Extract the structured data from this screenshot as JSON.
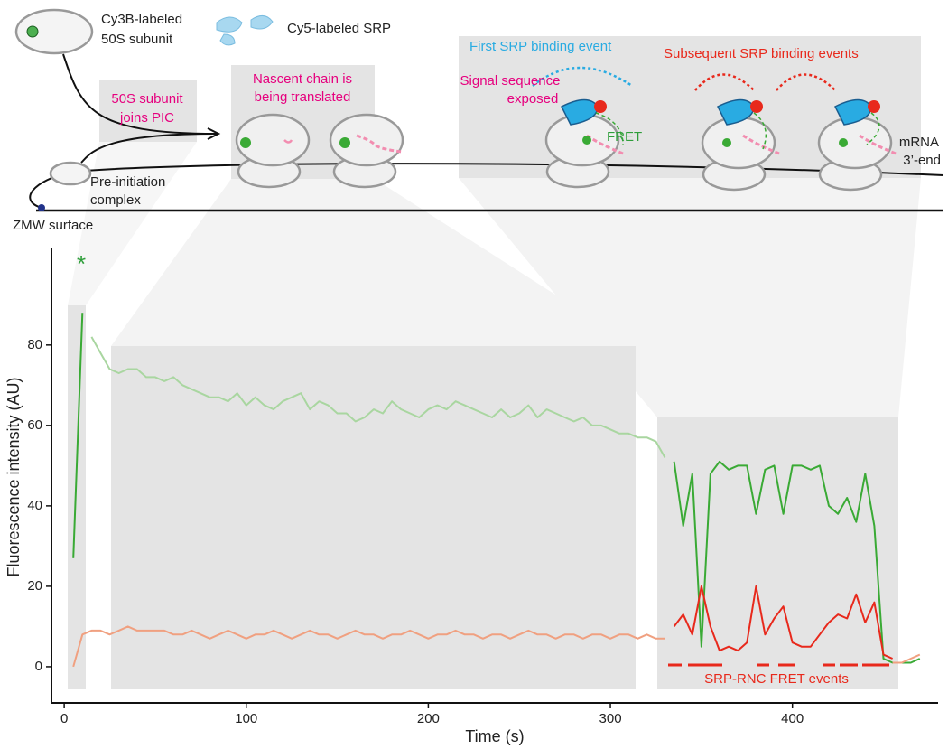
{
  "diagram": {
    "cy3b": [
      "Cy3B-labeled",
      "50S subunit"
    ],
    "cy5": "Cy5-labeled SRP",
    "joins": [
      "50S subunit",
      "joins PIC"
    ],
    "nascent": [
      "Nascent chain is",
      "being translated"
    ],
    "first": "First SRP binding event",
    "subsequent": "Subsequent SRP binding events",
    "signal": [
      "Signal sequence",
      "exposed"
    ],
    "fret": "FRET",
    "mrna": [
      "mRNA",
      "3’-end"
    ],
    "pic": [
      "Pre-initiation",
      "complex"
    ],
    "zmw": "ZMW surface"
  },
  "chart_data": {
    "type": "line",
    "xlabel": "Time (s)",
    "ylabel": "Fluorescence intensity (AU)",
    "annotations": [
      "*",
      "SRP-RNC FRET events"
    ],
    "xlim": [
      -7,
      480
    ],
    "ylim": [
      -9,
      104
    ],
    "xticks": [
      0,
      100,
      200,
      300,
      400
    ],
    "yticks": [
      0,
      20,
      40,
      60,
      80
    ],
    "x": [
      5,
      10,
      15,
      20,
      25,
      30,
      35,
      40,
      45,
      50,
      55,
      60,
      65,
      70,
      75,
      80,
      85,
      90,
      95,
      100,
      105,
      110,
      115,
      120,
      125,
      130,
      135,
      140,
      145,
      150,
      155,
      160,
      165,
      170,
      175,
      180,
      185,
      190,
      195,
      200,
      205,
      210,
      215,
      220,
      225,
      230,
      235,
      240,
      245,
      250,
      255,
      260,
      265,
      270,
      275,
      280,
      285,
      290,
      295,
      300,
      305,
      310,
      315,
      320,
      325,
      330,
      335,
      340,
      345,
      350,
      355,
      360,
      365,
      370,
      375,
      380,
      385,
      390,
      395,
      400,
      405,
      410,
      415,
      420,
      425,
      430,
      435,
      440,
      445,
      450,
      455,
      460,
      465,
      470
    ],
    "series": [
      {
        "color": "#a9d6a0",
        "values": [
          null,
          null,
          82,
          78,
          74,
          73,
          74,
          74,
          72,
          72,
          71,
          72,
          70,
          69,
          68,
          67,
          67,
          66,
          68,
          65,
          67,
          65,
          64,
          66,
          67,
          68,
          64,
          66,
          65,
          63,
          63,
          61,
          62,
          64,
          63,
          66,
          64,
          63,
          62,
          64,
          65,
          64,
          66,
          65,
          64,
          63,
          62,
          64,
          62,
          63,
          65,
          62,
          64,
          63,
          62,
          61,
          62,
          60,
          60,
          59,
          58,
          58,
          57,
          57,
          56,
          52,
          null,
          null,
          null,
          null,
          null,
          null,
          null,
          null,
          null,
          null,
          null,
          null,
          null,
          null,
          null,
          null,
          null,
          null,
          null,
          null,
          null,
          null,
          null,
          null,
          null,
          null,
          null,
          null
        ]
      },
      {
        "color": "#3aaa35",
        "values": [
          27,
          88,
          null,
          null,
          null,
          null,
          null,
          null,
          null,
          null,
          null,
          null,
          null,
          null,
          null,
          null,
          null,
          null,
          null,
          null,
          null,
          null,
          null,
          null,
          null,
          null,
          null,
          null,
          null,
          null,
          null,
          null,
          null,
          null,
          null,
          null,
          null,
          null,
          null,
          null,
          null,
          null,
          null,
          null,
          null,
          null,
          null,
          null,
          null,
          null,
          null,
          null,
          null,
          null,
          null,
          null,
          null,
          null,
          null,
          null,
          null,
          null,
          null,
          null,
          null,
          null,
          51,
          35,
          48,
          5,
          48,
          51,
          49,
          50,
          50,
          38,
          49,
          50,
          38,
          50,
          50,
          49,
          50,
          40,
          38,
          42,
          36,
          48,
          35,
          2,
          1,
          1,
          1,
          2
        ]
      },
      {
        "color": "#f0a080",
        "values": [
          0,
          8,
          9,
          9,
          8,
          9,
          10,
          9,
          9,
          9,
          9,
          8,
          8,
          9,
          8,
          7,
          8,
          9,
          8,
          7,
          8,
          8,
          9,
          8,
          7,
          8,
          9,
          8,
          8,
          7,
          8,
          9,
          8,
          8,
          7,
          8,
          8,
          9,
          8,
          7,
          8,
          8,
          9,
          8,
          8,
          7,
          8,
          8,
          7,
          8,
          9,
          8,
          8,
          7,
          8,
          8,
          7,
          8,
          8,
          7,
          8,
          8,
          7,
          8,
          7,
          7,
          null,
          null,
          null,
          null,
          null,
          null,
          null,
          null,
          null,
          null,
          null,
          null,
          null,
          null,
          null,
          null,
          null,
          null,
          null,
          null,
          null,
          null,
          null,
          null,
          1,
          1,
          2,
          3
        ]
      },
      {
        "color": "#e8291c",
        "values": [
          null,
          null,
          null,
          null,
          null,
          null,
          null,
          null,
          null,
          null,
          null,
          null,
          null,
          null,
          null,
          null,
          null,
          null,
          null,
          null,
          null,
          null,
          null,
          null,
          null,
          null,
          null,
          null,
          null,
          null,
          null,
          null,
          null,
          null,
          null,
          null,
          null,
          null,
          null,
          null,
          null,
          null,
          null,
          null,
          null,
          null,
          null,
          null,
          null,
          null,
          null,
          null,
          null,
          null,
          null,
          null,
          null,
          null,
          null,
          null,
          null,
          null,
          null,
          null,
          null,
          null,
          10,
          13,
          8,
          20,
          10,
          4,
          5,
          4,
          6,
          20,
          8,
          12,
          15,
          6,
          5,
          5,
          8,
          11,
          13,
          12,
          18,
          11,
          16,
          3,
          2,
          null,
          null,
          null
        ]
      }
    ]
  }
}
